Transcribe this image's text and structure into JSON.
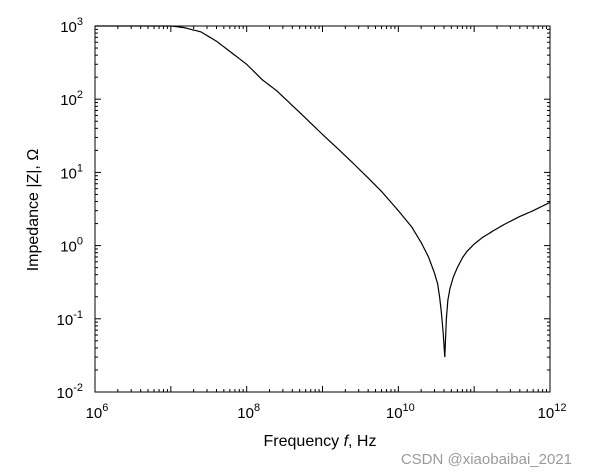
{
  "chart_data": {
    "type": "line",
    "xscale": "log",
    "yscale": "log",
    "xlim": [
      1000000.0,
      1000000000000.0
    ],
    "ylim": [
      0.01,
      1000
    ],
    "xlabel": "Frequency f, Hz",
    "xlabel_parts": {
      "prefix": "Frequency ",
      "var": "f",
      "suffix": ", Hz"
    },
    "ylabel": "Impedance |Z|, Ω",
    "x_ticks": [
      {
        "value": 1000000.0,
        "base": "10",
        "exp": "6"
      },
      {
        "value": 100000000.0,
        "base": "10",
        "exp": "8"
      },
      {
        "value": 10000000000.0,
        "base": "10",
        "exp": "10"
      },
      {
        "value": 1000000000000.0,
        "base": "10",
        "exp": "12"
      }
    ],
    "y_ticks": [
      {
        "value": 0.01,
        "base": "10",
        "exp": "-2"
      },
      {
        "value": 0.1,
        "base": "10",
        "exp": "-1"
      },
      {
        "value": 1,
        "base": "10",
        "exp": "0"
      },
      {
        "value": 10,
        "base": "10",
        "exp": "1"
      },
      {
        "value": 100,
        "base": "10",
        "exp": "2"
      },
      {
        "value": 1000,
        "base": "10",
        "exp": "3"
      }
    ],
    "grid": false,
    "line_color": "#000000",
    "series": [
      {
        "x": [
          1000000.0,
          10000000.0,
          15000000.0,
          25000000.0,
          40000000.0,
          60000000.0,
          100000000.0,
          160000000.0,
          250000000.0,
          400000000.0,
          600000000.0,
          1000000000.0,
          1600000000.0,
          2500000000.0,
          4000000000.0,
          6000000000.0,
          10000000000.0,
          15000000000.0,
          20000000000.0,
          25000000000.0,
          30000000000.0,
          33000000000.0,
          35000000000.0,
          37000000000.0,
          39000000000.0,
          41000000000.0,
          43000000000.0,
          45000000000.0,
          48000000000.0,
          53000000000.0,
          60000000000.0,
          70000000000.0,
          80000000000.0,
          100000000000.0,
          130000000000.0,
          180000000000.0,
          250000000000.0,
          400000000000.0,
          600000000000.0,
          1000000000000.0
        ],
        "y": [
          1000,
          1000,
          950,
          830,
          620,
          450,
          300,
          185,
          130,
          82,
          55,
          33,
          21,
          13.5,
          8.4,
          5.5,
          3.0,
          1.8,
          1.1,
          0.7,
          0.42,
          0.3,
          0.2,
          0.12,
          0.065,
          0.03,
          0.1,
          0.18,
          0.26,
          0.37,
          0.5,
          0.68,
          0.83,
          1.05,
          1.3,
          1.6,
          1.95,
          2.5,
          3.0,
          3.9
        ]
      }
    ]
  },
  "watermark": "CSDN @xiaobaibai_2021"
}
